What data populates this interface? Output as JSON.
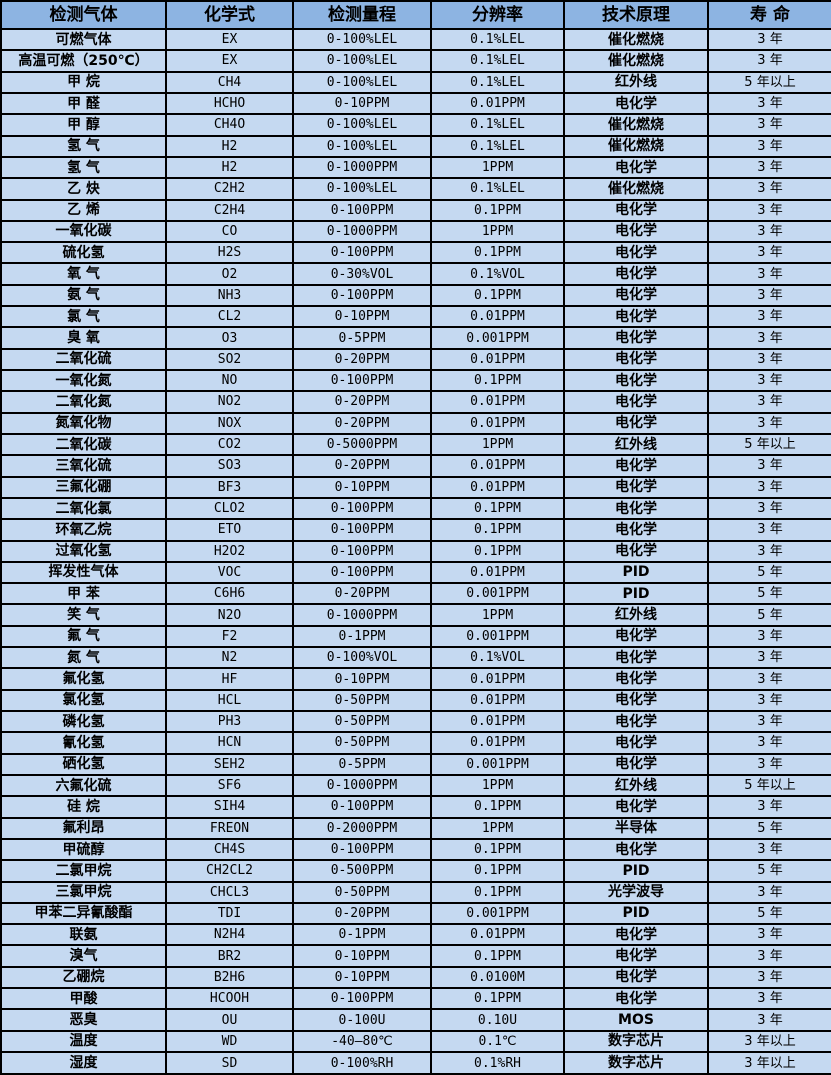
{
  "colors": {
    "header_bg": "#8DB4E2",
    "row_bg": "#C5D9F1",
    "border": "#000000",
    "text": "#000000"
  },
  "table": {
    "columns": [
      "检测气体",
      "化学式",
      "检测量程",
      "分辨率",
      "技术原理",
      "寿 命"
    ],
    "rows": [
      [
        "可燃气体",
        "EX",
        "0-100%LEL",
        "0.1%LEL",
        "催化燃烧",
        "3 年"
      ],
      [
        "高温可燃（250℃）",
        "EX",
        "0-100%LEL",
        "0.1%LEL",
        "催化燃烧",
        "3 年"
      ],
      [
        "甲 烷",
        "CH4",
        "0-100%LEL",
        "0.1%LEL",
        "红外线",
        "5 年以上"
      ],
      [
        "甲 醛",
        "HCHO",
        "0-10PPM",
        "0.01PPM",
        "电化学",
        "3 年"
      ],
      [
        "甲 醇",
        "CH4O",
        "0-100%LEL",
        "0.1%LEL",
        "催化燃烧",
        "3 年"
      ],
      [
        "氢 气",
        "H2",
        "0-100%LEL",
        "0.1%LEL",
        "催化燃烧",
        "3 年"
      ],
      [
        "氢 气",
        "H2",
        "0-1000PPM",
        "1PPM",
        "电化学",
        "3 年"
      ],
      [
        "乙 炔",
        "C2H2",
        "0-100%LEL",
        "0.1%LEL",
        "催化燃烧",
        "3 年"
      ],
      [
        "乙 烯",
        "C2H4",
        "0-100PPM",
        "0.1PPM",
        "电化学",
        "3 年"
      ],
      [
        "一氧化碳",
        "CO",
        "0-1000PPM",
        "1PPM",
        "电化学",
        "3 年"
      ],
      [
        "硫化氢",
        "H2S",
        "0-100PPM",
        "0.1PPM",
        "电化学",
        "3 年"
      ],
      [
        "氧 气",
        "O2",
        "0-30%VOL",
        "0.1%VOL",
        "电化学",
        "3 年"
      ],
      [
        "氨 气",
        "NH3",
        "0-100PPM",
        "0.1PPM",
        "电化学",
        "3 年"
      ],
      [
        "氯 气",
        "CL2",
        "0-10PPM",
        "0.01PPM",
        "电化学",
        "3 年"
      ],
      [
        "臭 氧",
        "O3",
        "0-5PPM",
        "0.001PPM",
        "电化学",
        "3 年"
      ],
      [
        "二氧化硫",
        "SO2",
        "0-20PPM",
        "0.01PPM",
        "电化学",
        "3 年"
      ],
      [
        "一氧化氮",
        "NO",
        "0-100PPM",
        "0.1PPM",
        "电化学",
        "3 年"
      ],
      [
        "二氧化氮",
        "NO2",
        "0-20PPM",
        "0.01PPM",
        "电化学",
        "3 年"
      ],
      [
        "氮氧化物",
        "NOX",
        "0-20PPM",
        "0.01PPM",
        "电化学",
        "3 年"
      ],
      [
        "二氧化碳",
        "CO2",
        "0-5000PPM",
        "1PPM",
        "红外线",
        "5 年以上"
      ],
      [
        "三氧化硫",
        "SO3",
        "0-20PPM",
        "0.01PPM",
        "电化学",
        "3 年"
      ],
      [
        "三氟化硼",
        "BF3",
        "0-10PPM",
        "0.01PPM",
        "电化学",
        "3 年"
      ],
      [
        "二氧化氯",
        "CLO2",
        "0-100PPM",
        "0.1PPM",
        "电化学",
        "3 年"
      ],
      [
        "环氧乙烷",
        "ETO",
        "0-100PPM",
        "0.1PPM",
        "电化学",
        "3 年"
      ],
      [
        "过氧化氢",
        "H2O2",
        "0-100PPM",
        "0.1PPM",
        "电化学",
        "3 年"
      ],
      [
        "挥发性气体",
        "VOC",
        "0-100PPM",
        "0.01PPM",
        "PID",
        "5 年"
      ],
      [
        "甲 苯",
        "C6H6",
        "0-20PPM",
        "0.001PPM",
        "PID",
        "5 年"
      ],
      [
        "笑 气",
        "N2O",
        "0-1000PPM",
        "1PPM",
        "红外线",
        "5 年"
      ],
      [
        "氟 气",
        "F2",
        "0-1PPM",
        "0.001PPM",
        "电化学",
        "3 年"
      ],
      [
        "氮 气",
        "N2",
        "0-100%VOL",
        "0.1%VOL",
        "电化学",
        "3 年"
      ],
      [
        "氟化氢",
        "HF",
        "0-10PPM",
        "0.01PPM",
        "电化学",
        "3 年"
      ],
      [
        "氯化氢",
        "HCL",
        "0-50PPM",
        "0.01PPM",
        "电化学",
        "3 年"
      ],
      [
        "磷化氢",
        "PH3",
        "0-50PPM",
        "0.01PPM",
        "电化学",
        "3 年"
      ],
      [
        "氰化氢",
        "HCN",
        "0-50PPM",
        "0.01PPM",
        "电化学",
        "3 年"
      ],
      [
        "硒化氢",
        "SEH2",
        "0-5PPM",
        "0.001PPM",
        "电化学",
        "3 年"
      ],
      [
        "六氟化硫",
        "SF6",
        "0-1000PPM",
        "1PPM",
        "红外线",
        "5 年以上"
      ],
      [
        "硅 烷",
        "SIH4",
        "0-100PPM",
        "0.1PPM",
        "电化学",
        "3 年"
      ],
      [
        "氟利昂",
        "FREON",
        "0-2000PPM",
        "1PPM",
        "半导体",
        "5 年"
      ],
      [
        "甲硫醇",
        "CH4S",
        "0-100PPM",
        "0.1PPM",
        "电化学",
        "3 年"
      ],
      [
        "二氯甲烷",
        "CH2CL2",
        "0-500PPM",
        "0.1PPM",
        "PID",
        "5 年"
      ],
      [
        "三氯甲烷",
        "CHCL3",
        "0-50PPM",
        "0.1PPM",
        "光学波导",
        "3 年"
      ],
      [
        "甲苯二异氰酸酯",
        "TDI",
        "0-20PPM",
        "0.001PPM",
        "PID",
        "5 年"
      ],
      [
        "联氨",
        "N2H4",
        "0-1PPM",
        "0.01PPM",
        "电化学",
        "3 年"
      ],
      [
        "溴气",
        "BR2",
        "0-10PPM",
        "0.1PPM",
        "电化学",
        "3 年"
      ],
      [
        "乙硼烷",
        "B2H6",
        "0-10PPM",
        "0.0100M",
        "电化学",
        "3 年"
      ],
      [
        "甲酸",
        "HCOOH",
        "0-100PPM",
        "0.1PPM",
        "电化学",
        "3 年"
      ],
      [
        "恶臭",
        "OU",
        "0-100U",
        "0.10U",
        "MOS",
        "3 年"
      ],
      [
        "温度",
        "WD",
        "-40—80℃",
        "0.1℃",
        "数字芯片",
        "3 年以上"
      ],
      [
        "湿度",
        "SD",
        "0-100%RH",
        "0.1%RH",
        "数字芯片",
        "3 年以上"
      ]
    ]
  }
}
